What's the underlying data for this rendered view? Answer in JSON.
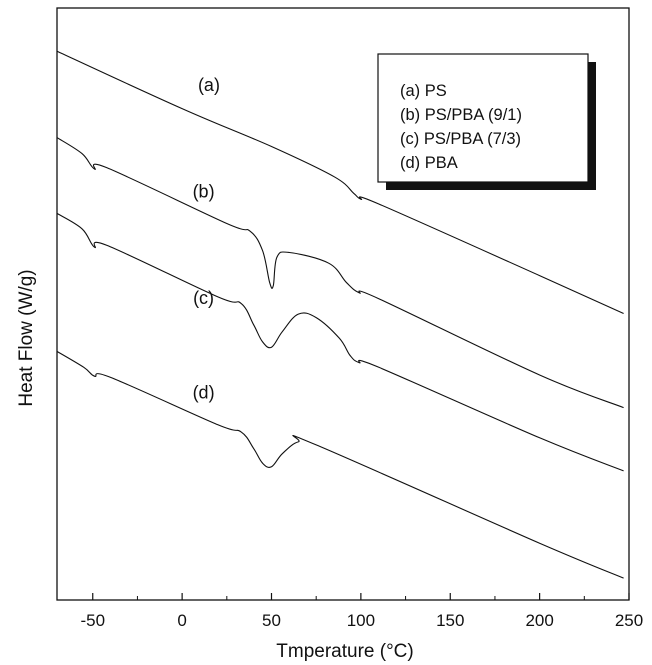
{
  "chart_data": {
    "type": "line",
    "title": "",
    "xlabel": "Tmperature (°C)",
    "ylabel": "Heat Flow (W/g)",
    "xlim": [
      -70,
      250
    ],
    "ylim": [
      0,
      100
    ],
    "y_ticks_shown": false,
    "x_ticks": [
      -50,
      0,
      50,
      100,
      150,
      200,
      250
    ],
    "grid": false,
    "legend_position": "top-right",
    "legend": [
      "(a) PS",
      "(b) PS/PBA (9/1)",
      "(c) PS/PBA (7/3)",
      "(d) PBA"
    ],
    "series": [
      {
        "name": "(a) PS",
        "label": "(a)",
        "label_at": [
          15,
          86
        ],
        "points": [
          [
            -70,
            92.7
          ],
          [
            0,
            83.0
          ],
          [
            50,
            76.6
          ],
          [
            85,
            71.5
          ],
          [
            96,
            68.7
          ],
          [
            100,
            67.7
          ],
          [
            110,
            66.9
          ],
          [
            200,
            54.8
          ],
          [
            247,
            48.4
          ]
        ]
      },
      {
        "name": "(b) PS/PBA (9/1)",
        "label": "(b)",
        "label_at": [
          12,
          68
        ],
        "points": [
          [
            -70,
            78.1
          ],
          [
            -56,
            75.4
          ],
          [
            -49,
            72.8
          ],
          [
            -42,
            73.0
          ],
          [
            25,
            63.6
          ],
          [
            38,
            62.3
          ],
          [
            45,
            59.0
          ],
          [
            49,
            53.6
          ],
          [
            51,
            53.1
          ],
          [
            53,
            57.9
          ],
          [
            60,
            58.7
          ],
          [
            82,
            56.9
          ],
          [
            92,
            53.6
          ],
          [
            99,
            51.9
          ],
          [
            110,
            50.9
          ],
          [
            200,
            38.0
          ],
          [
            247,
            32.5
          ]
        ]
      },
      {
        "name": "(c) PS/PBA (7/3)",
        "label": "(c)",
        "label_at": [
          12,
          50
        ],
        "points": [
          [
            -70,
            65.3
          ],
          [
            -56,
            62.7
          ],
          [
            -49,
            59.6
          ],
          [
            -42,
            59.9
          ],
          [
            20,
            51.2
          ],
          [
            33,
            50.1
          ],
          [
            40,
            46.5
          ],
          [
            45,
            43.6
          ],
          [
            50,
            42.7
          ],
          [
            56,
            45.3
          ],
          [
            65,
            48.3
          ],
          [
            75,
            47.7
          ],
          [
            88,
            44.2
          ],
          [
            94,
            41.3
          ],
          [
            99,
            40.1
          ],
          [
            110,
            39.3
          ],
          [
            200,
            27.4
          ],
          [
            247,
            21.8
          ]
        ]
      },
      {
        "name": "(d) PBA",
        "label": "(d)",
        "label_at": [
          12,
          34
        ],
        "points": [
          [
            -70,
            42.0
          ],
          [
            -55,
            39.3
          ],
          [
            -49,
            37.8
          ],
          [
            -40,
            37.6
          ],
          [
            20,
            29.6
          ],
          [
            33,
            28.4
          ],
          [
            40,
            25.6
          ],
          [
            45,
            23.1
          ],
          [
            50,
            22.5
          ],
          [
            56,
            24.7
          ],
          [
            65,
            26.7
          ],
          [
            75,
            26.2
          ],
          [
            200,
            9.6
          ],
          [
            247,
            3.7
          ]
        ]
      }
    ]
  }
}
